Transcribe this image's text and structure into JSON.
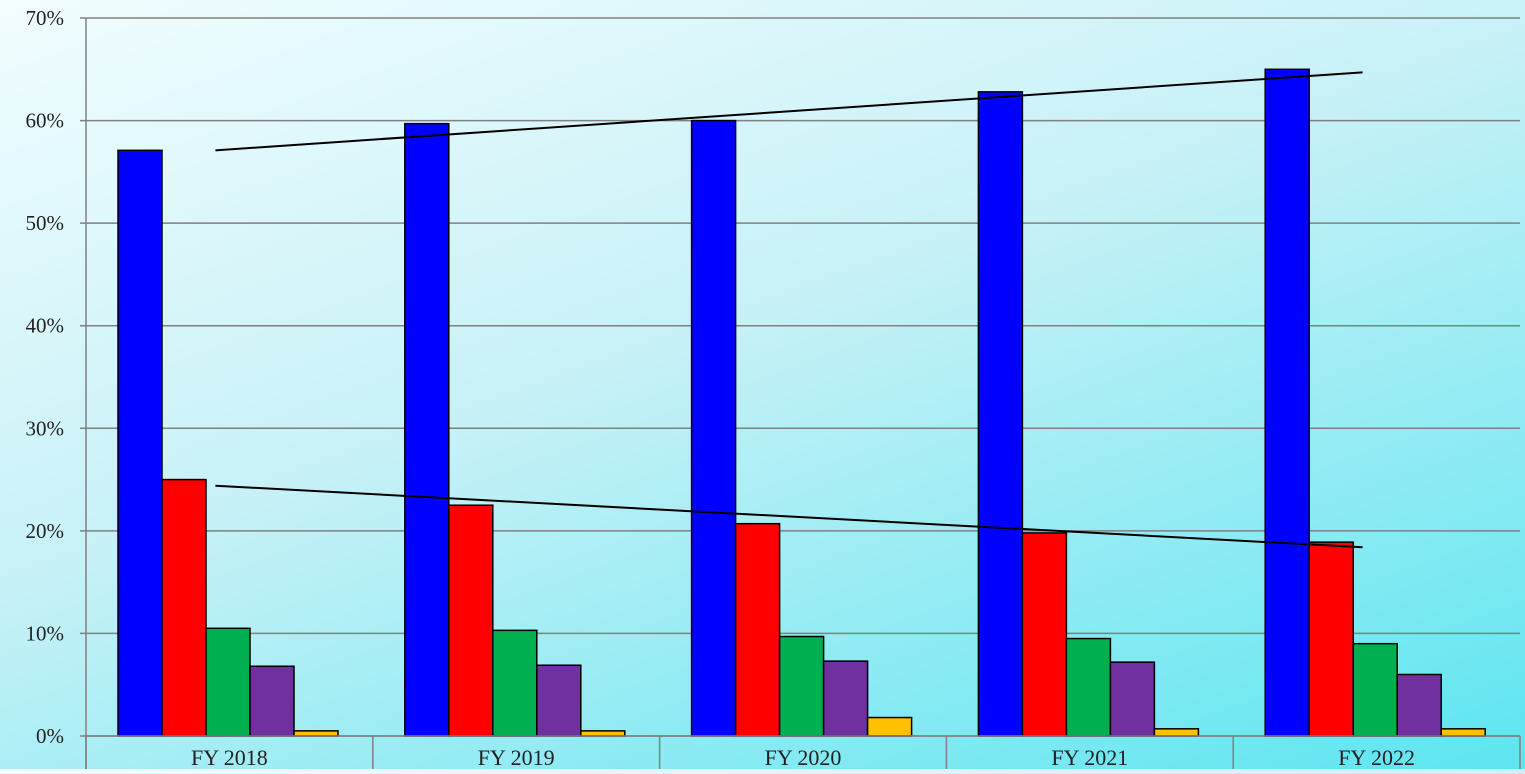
{
  "chart_data": {
    "type": "bar",
    "categories": [
      "FY 2018",
      "FY 2019",
      "FY 2020",
      "FY 2021",
      "FY 2022"
    ],
    "series": [
      {
        "color": "#0000ff",
        "values": [
          57.1,
          59.7,
          60.0,
          62.8,
          65.0
        ]
      },
      {
        "color": "#ff0000",
        "values": [
          25.0,
          22.5,
          20.7,
          19.8,
          18.9
        ]
      },
      {
        "color": "#00b050",
        "values": [
          10.5,
          10.3,
          9.7,
          9.5,
          9.0
        ]
      },
      {
        "color": "#7030a0",
        "values": [
          6.8,
          6.9,
          7.3,
          7.2,
          6.0
        ]
      },
      {
        "color": "#ffc000",
        "values": [
          0.5,
          0.5,
          1.8,
          0.7,
          0.7
        ]
      }
    ],
    "trendlines": [
      {
        "series_index": 0,
        "start": 57.1,
        "end": 64.7
      },
      {
        "series_index": 1,
        "start": 24.4,
        "end": 18.4
      }
    ],
    "yticks": [
      "0%",
      "10%",
      "20%",
      "30%",
      "40%",
      "50%",
      "60%",
      "70%"
    ],
    "ylim": [
      0,
      70
    ],
    "grid": true,
    "title": "",
    "xlabel": "",
    "ylabel": "",
    "colors": {
      "grid": "#808080",
      "axis": "#808080",
      "bar_outline": "#000000",
      "trendline": "#000000"
    }
  }
}
